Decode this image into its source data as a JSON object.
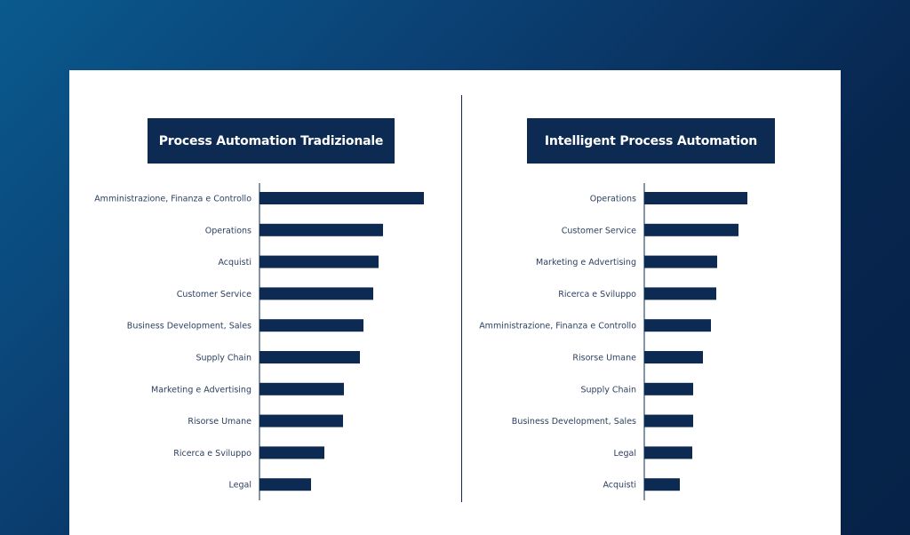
{
  "colors": {
    "bar": "#0d2a52",
    "panel": "#ffffff",
    "title_bg": "#0d2a52"
  },
  "chart_data": [
    {
      "type": "bar",
      "orientation": "horizontal",
      "title": "Process Automation Tradizionale",
      "categories": [
        "Amministrazione, Finanza e Controllo",
        "Operations",
        "Acquisti",
        "Customer Service",
        "Business Development, Sales",
        "Supply Chain",
        "Marketing e Advertising",
        "Risorse Umane",
        "Ricerca e Sviluppo",
        "Legal"
      ],
      "values": [
        185,
        139,
        134,
        128,
        117,
        113,
        95,
        94,
        73,
        58
      ],
      "xlim": [
        0,
        185
      ],
      "grid": false
    },
    {
      "type": "bar",
      "orientation": "horizontal",
      "title": "Intelligent Process Automation",
      "categories": [
        "Operations",
        "Customer Service",
        "Marketing e Advertising",
        "Ricerca e Sviluppo",
        "Amministrazione, Finanza e Controllo",
        "Risorse Umane",
        "Supply Chain",
        "Business Development, Sales",
        "Legal",
        "Acquisti"
      ],
      "values": [
        116,
        106,
        82,
        81,
        75,
        66,
        55,
        55,
        54,
        40
      ],
      "xlim": [
        0,
        185
      ],
      "grid": false
    }
  ]
}
